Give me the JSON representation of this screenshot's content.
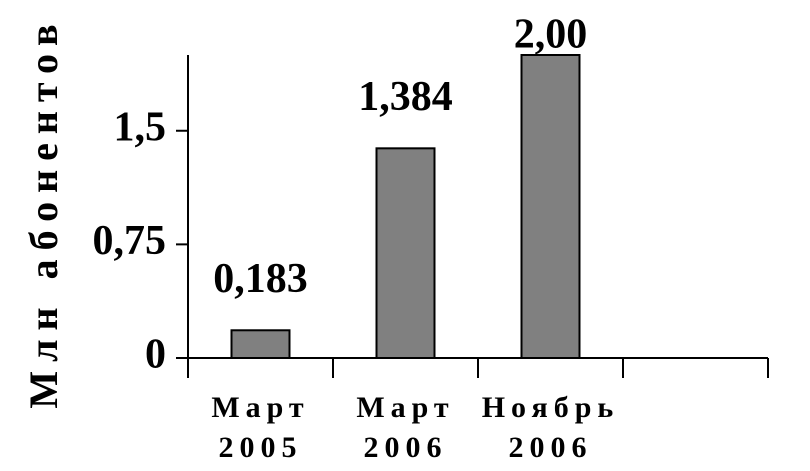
{
  "chart_data": {
    "type": "bar",
    "y_label": "Млн абонентов",
    "categories": [
      "Март 2005",
      "Март 2006",
      "Ноябрь 2006",
      null
    ],
    "values": [
      0.183,
      1.384,
      2.0,
      null
    ],
    "value_labels": [
      "0,183",
      "1,384",
      "2,00",
      null
    ],
    "color": "#808080",
    "ylim": [
      0,
      2
    ],
    "yticks": [
      0,
      {
        "value": 0.75,
        "label": "0,75"
      },
      {
        "value": 1.5,
        "label": "1,5"
      }
    ],
    "grid": false
  }
}
